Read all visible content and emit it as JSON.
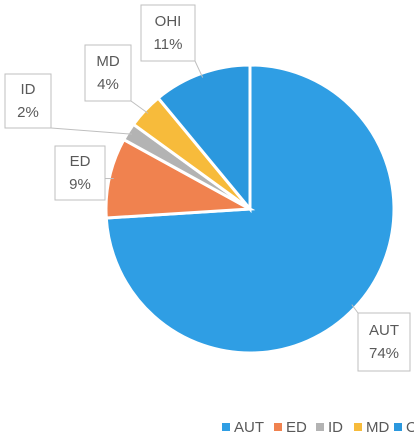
{
  "chart_data": {
    "type": "pie",
    "categories": [
      "AUT",
      "ED",
      "ID",
      "MD",
      "OHI"
    ],
    "values": [
      74,
      9,
      2,
      4,
      11
    ],
    "value_labels": [
      "74%",
      "9%",
      "2%",
      "4%",
      "11%"
    ],
    "colors": [
      "#2f9ee4",
      "#f0824f",
      "#b3b3b3",
      "#f7bb3b",
      "#2b98de"
    ],
    "legend": "bottom"
  }
}
